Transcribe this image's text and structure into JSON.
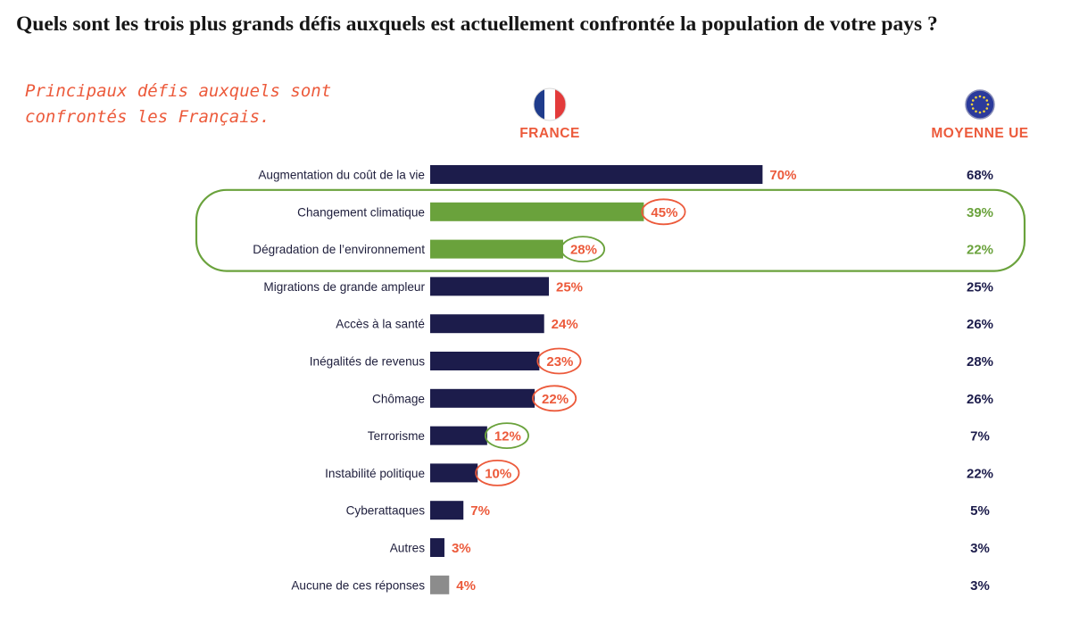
{
  "question": "Quels sont les trois plus grands défis auxquels est actuellement confrontée la population de votre pays ?",
  "subtitle_line1": "Principaux défis auxquels sont",
  "subtitle_line2": "confrontés les Français.",
  "col_france": "FRANCE",
  "col_eu": "MOYENNE UE",
  "colors": {
    "navy": "#1c1c4b",
    "green": "#6aa23c",
    "grey": "#8c8c8c",
    "orange": "#ec5a3b",
    "eu_text": "#1c1c4b"
  },
  "chart_data": {
    "type": "bar",
    "orientation": "horizontal",
    "title": "Principaux défis auxquels sont confrontés les Français.",
    "series": [
      {
        "name": "FRANCE",
        "values": [
          70,
          45,
          28,
          25,
          24,
          23,
          22,
          12,
          10,
          7,
          3,
          4
        ]
      },
      {
        "name": "MOYENNE UE",
        "values": [
          68,
          39,
          22,
          25,
          26,
          28,
          26,
          7,
          22,
          5,
          3,
          3
        ]
      }
    ],
    "categories": [
      "Augmentation du coût de la vie",
      "Changement climatique",
      "Dégradation de l’environnement",
      "Migrations de grande ampleur",
      "Accès à la santé",
      "Inégalités de revenus",
      "Chômage",
      "Terrorisme",
      "Instabilité politique",
      "Cyberattaques",
      "Autres",
      "Aucune de ces réponses"
    ],
    "france_labels": [
      "70%",
      "45%",
      "28%",
      "25%",
      "24%",
      "23%",
      "22%",
      "12%",
      "10%",
      "7%",
      "3%",
      "4%"
    ],
    "eu_labels": [
      "68%",
      "39%",
      "22%",
      "25%",
      "26%",
      "28%",
      "26%",
      "7%",
      "22%",
      "5%",
      "3%",
      "3%"
    ],
    "bar_colors": [
      "navy",
      "green",
      "green",
      "navy",
      "navy",
      "navy",
      "navy",
      "navy",
      "navy",
      "navy",
      "navy",
      "grey"
    ],
    "label_colors": [
      "orange",
      "orange",
      "orange",
      "orange",
      "orange",
      "orange",
      "orange",
      "orange",
      "orange",
      "orange",
      "orange",
      "orange"
    ],
    "eu_colors": [
      "eu_text",
      "green",
      "green",
      "eu_text",
      "eu_text",
      "eu_text",
      "eu_text",
      "eu_text",
      "eu_text",
      "eu_text",
      "eu_text",
      "eu_text"
    ],
    "circled": [
      "none",
      "orange",
      "green",
      "none",
      "none",
      "orange",
      "orange",
      "green",
      "orange",
      "none",
      "none",
      "none"
    ],
    "highlight_group": [
      1,
      2
    ],
    "xlim": [
      0,
      70
    ],
    "grid": false
  }
}
